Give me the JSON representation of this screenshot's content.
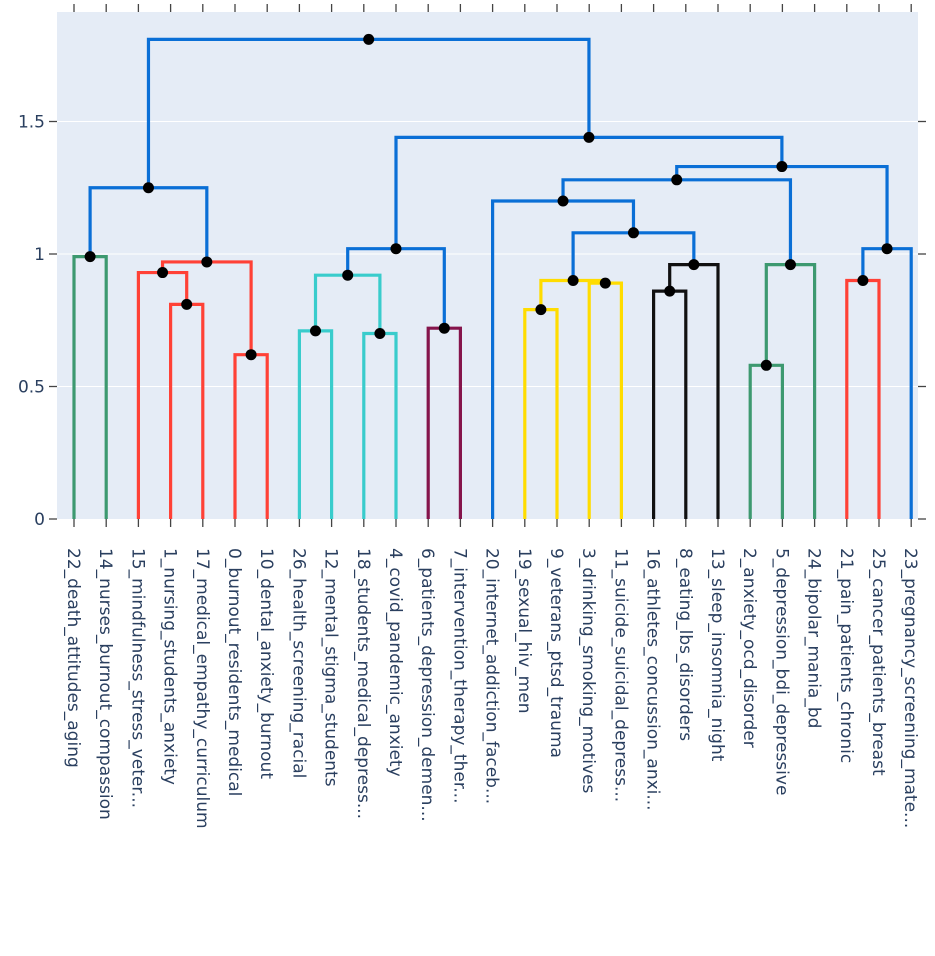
{
  "chart_data": {
    "type": "dendrogram",
    "title": "",
    "xlabel": "",
    "ylabel": "",
    "ylim": [
      0,
      1.85
    ],
    "yticks": [
      {
        "value": 0,
        "label": "0"
      },
      {
        "value": 0.5,
        "label": "0.5"
      },
      {
        "value": 1,
        "label": "1"
      },
      {
        "value": 1.5,
        "label": "1.5"
      }
    ],
    "leaves": [
      "22_death_attitudes_aging",
      "14_nurses_burnout_compassion",
      "15_mindfulness_stress_veter...",
      "1_nursing_students_anxiety",
      "17_medical_empathy_curriculum",
      "0_burnout_residents_medical",
      "10_dental_anxiety_burnout",
      "26_health_screening_racial",
      "12_mental_stigma_students",
      "18_students_medical_depress...",
      "4_covid_pandemic_anxiety",
      "6_patients_depression_demen...",
      "7_intervention_therapy_ther...",
      "20_internet_addiction_faceb...",
      "19_sexual_hiv_men",
      "9_veterans_ptsd_trauma",
      "3_drinking_smoking_motives",
      "11_suicide_suicidal_depress...",
      "16_athletes_concussion_anxi...",
      "8_eating_lbs_disorders",
      "13_sleep_insomnia_night",
      "2_anxiety_ocd_disorder",
      "5_depression_bdi_depressive",
      "24_bipolar_mania_bd",
      "21_pain_patients_chronic",
      "25_cancer_patients_breast",
      "23_pregnancy_screening_mate..."
    ],
    "colors": {
      "background": "#e5ecf6",
      "axis_text": "#2a3f5f",
      "above_threshold": "#0a6fd6",
      "green": "#3d9970",
      "red": "#ff4136",
      "cyan": "#39cccc",
      "purple": "#85144b",
      "yellow": "#ffdc00",
      "black": "#111111",
      "node": "#000000"
    },
    "links": [
      {
        "left": 0,
        "right": 1,
        "height": 0.99,
        "lh": 0,
        "rh": 0,
        "color": "green"
      },
      {
        "left": 5,
        "right": 6,
        "height": 0.62,
        "lh": 0,
        "rh": 0,
        "color": "red"
      },
      {
        "left": 3,
        "right": 4,
        "height": 0.81,
        "lh": 0,
        "rh": 0,
        "color": "red"
      },
      {
        "left": 2,
        "right": 3.5,
        "height": 0.93,
        "lh": 0,
        "rh": 0.81,
        "color": "red"
      },
      {
        "left": 2.75,
        "right": 5.5,
        "height": 0.97,
        "lh": 0.93,
        "rh": 0.62,
        "color": "red"
      },
      {
        "left": 0.5,
        "right": 4.125,
        "height": 1.25,
        "lh": 0.99,
        "rh": 0.97,
        "color": "above_threshold"
      },
      {
        "left": 7,
        "right": 8,
        "height": 0.71,
        "lh": 0,
        "rh": 0,
        "color": "cyan"
      },
      {
        "left": 9,
        "right": 10,
        "height": 0.7,
        "lh": 0,
        "rh": 0,
        "color": "cyan"
      },
      {
        "left": 7.5,
        "right": 9.5,
        "height": 0.92,
        "lh": 0.71,
        "rh": 0.7,
        "color": "cyan"
      },
      {
        "left": 11,
        "right": 12,
        "height": 0.72,
        "lh": 0,
        "rh": 0,
        "color": "purple"
      },
      {
        "left": 8.5,
        "right": 11.5,
        "height": 1.02,
        "lh": 0.92,
        "rh": 0.72,
        "color": "above_threshold"
      },
      {
        "left": 14,
        "right": 15,
        "height": 0.79,
        "lh": 0,
        "rh": 0,
        "color": "yellow"
      },
      {
        "left": 16,
        "right": 17,
        "height": 0.89,
        "lh": 0,
        "rh": 0,
        "color": "yellow"
      },
      {
        "left": 14.5,
        "right": 16.5,
        "height": 0.9,
        "lh": 0.79,
        "rh": 0.89,
        "color": "yellow"
      },
      {
        "left": 18,
        "right": 19,
        "height": 0.86,
        "lh": 0,
        "rh": 0,
        "color": "black"
      },
      {
        "left": 18.5,
        "right": 20,
        "height": 0.96,
        "lh": 0.86,
        "rh": 0,
        "color": "black"
      },
      {
        "left": 15.5,
        "right": 19.25,
        "height": 1.08,
        "lh": 0.9,
        "rh": 0.96,
        "color": "above_threshold"
      },
      {
        "left": 13,
        "right": 17.375,
        "height": 1.2,
        "lh": 0,
        "rh": 1.08,
        "color": "above_threshold"
      },
      {
        "left": 21,
        "right": 22,
        "height": 0.58,
        "lh": 0,
        "rh": 0,
        "color": "green"
      },
      {
        "left": 21.5,
        "right": 23,
        "height": 0.96,
        "lh": 0.58,
        "rh": 0,
        "color": "green"
      },
      {
        "left": 15.1875,
        "right": 22.25,
        "height": 1.28,
        "lh": 1.2,
        "rh": 0.96,
        "color": "above_threshold"
      },
      {
        "left": 24,
        "right": 25,
        "height": 0.9,
        "lh": 0,
        "rh": 0,
        "color": "red"
      },
      {
        "left": 24.5,
        "right": 26,
        "height": 1.02,
        "lh": 0.9,
        "rh": 0,
        "color": "above_threshold"
      },
      {
        "left": 18.71875,
        "right": 25.25,
        "height": 1.33,
        "lh": 1.28,
        "rh": 1.02,
        "color": "above_threshold"
      },
      {
        "left": 10,
        "right": 21.984375,
        "height": 1.44,
        "lh": 1.02,
        "rh": 1.33,
        "color": "above_threshold"
      },
      {
        "left": 2.3125,
        "right": 15.9921875,
        "height": 1.81,
        "lh": 1.25,
        "rh": 1.44,
        "color": "above_threshold"
      }
    ]
  }
}
